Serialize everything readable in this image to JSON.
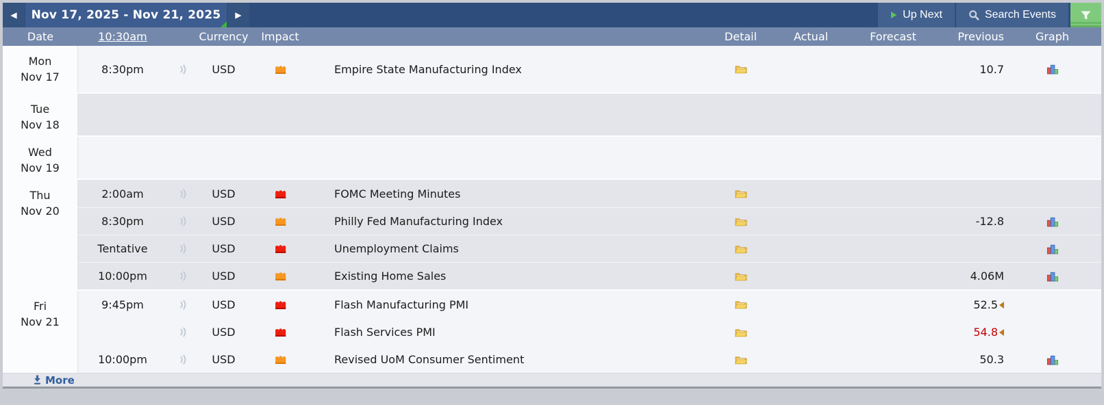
{
  "toolbar": {
    "prev": "◀",
    "next": "▶",
    "date_range": "Nov 17, 2025 - Nov 21, 2025",
    "up_next": "Up Next",
    "search_events": "Search Events"
  },
  "header": {
    "date": "Date",
    "time": "10:30am",
    "currency": "Currency",
    "impact": "Impact",
    "detail": "Detail",
    "actual": "Actual",
    "forecast": "Forecast",
    "previous": "Previous",
    "graph": "Graph"
  },
  "days": [
    {
      "label": "Mon",
      "date": "Nov 17",
      "rows": [
        {
          "time": "8:30pm",
          "currency": "USD",
          "impact": "medium",
          "event": "Empire State Manufacturing Index",
          "detail": true,
          "actual": "",
          "forecast": "",
          "previous": "10.7",
          "revised": false,
          "previous_red": false,
          "graph": true
        }
      ]
    },
    {
      "label": "Tue",
      "date": "Nov 18",
      "rows": []
    },
    {
      "label": "Wed",
      "date": "Nov 19",
      "rows": []
    },
    {
      "label": "Thu",
      "date": "Nov 20",
      "rows": [
        {
          "time": "2:00am",
          "currency": "USD",
          "impact": "high",
          "event": "FOMC Meeting Minutes",
          "detail": true,
          "actual": "",
          "forecast": "",
          "previous": "",
          "revised": false,
          "previous_red": false,
          "graph": false
        },
        {
          "time": "8:30pm",
          "currency": "USD",
          "impact": "medium",
          "event": "Philly Fed Manufacturing Index",
          "detail": true,
          "actual": "",
          "forecast": "",
          "previous": "-12.8",
          "revised": false,
          "previous_red": false,
          "graph": true
        },
        {
          "time": "Tentative",
          "currency": "USD",
          "impact": "high",
          "event": "Unemployment Claims",
          "detail": true,
          "actual": "",
          "forecast": "",
          "previous": "",
          "revised": false,
          "previous_red": false,
          "graph": true
        },
        {
          "time": "10:00pm",
          "currency": "USD",
          "impact": "medium",
          "event": "Existing Home Sales",
          "detail": true,
          "actual": "",
          "forecast": "",
          "previous": "4.06M",
          "revised": false,
          "previous_red": false,
          "graph": true
        }
      ]
    },
    {
      "label": "Fri",
      "date": "Nov 21",
      "rows": [
        {
          "time": "9:45pm",
          "currency": "USD",
          "impact": "high",
          "event": "Flash Manufacturing PMI",
          "detail": true,
          "actual": "",
          "forecast": "",
          "previous": "52.5",
          "revised": true,
          "previous_red": false,
          "graph": false
        },
        {
          "time": "",
          "currency": "USD",
          "impact": "high",
          "event": "Flash Services PMI",
          "detail": true,
          "actual": "",
          "forecast": "",
          "previous": "54.8",
          "revised": true,
          "previous_red": true,
          "graph": false
        },
        {
          "time": "10:00pm",
          "currency": "USD",
          "impact": "medium",
          "event": "Revised UoM Consumer Sentiment",
          "detail": true,
          "actual": "",
          "forecast": "",
          "previous": "50.3",
          "revised": false,
          "previous_red": false,
          "graph": true
        }
      ]
    }
  ],
  "footer": {
    "more": "More"
  },
  "colors": {
    "impact_high": "#ee1d0d",
    "impact_high_dark": "#b50d07",
    "impact_medium": "#f79722",
    "impact_medium_dark": "#d97b0a",
    "filter_green": "#7fca7d",
    "revised_value_red": "#c40000",
    "link_blue": "#2f5e9e",
    "header_blue": "#7488ab",
    "topbar_navy": "#2f4d7c"
  }
}
